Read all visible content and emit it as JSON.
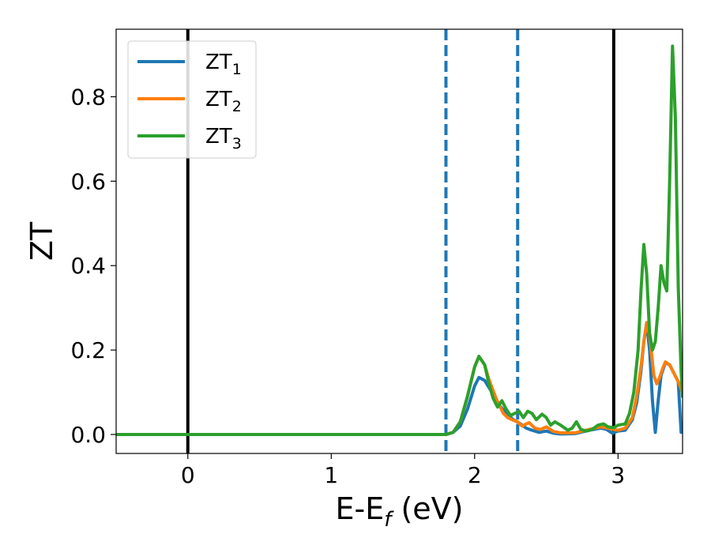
{
  "chart_data": {
    "type": "line",
    "xlabel": {
      "main": "E-E",
      "sub": "f",
      "suffix": " (eV)"
    },
    "ylabel": "ZT",
    "xlim": [
      -0.5,
      3.45
    ],
    "ylim": [
      -0.045,
      0.96
    ],
    "x_ticks": [
      0,
      1,
      2,
      3
    ],
    "x_tick_labels": [
      "0",
      "1",
      "2",
      "3"
    ],
    "y_ticks": [
      0.0,
      0.2,
      0.4,
      0.6,
      0.8
    ],
    "y_tick_labels": [
      "0.0",
      "0.2",
      "0.4",
      "0.6",
      "0.8"
    ],
    "grid": false,
    "legend": {
      "placement": "top-left"
    },
    "vlines": [
      {
        "x": 0.0,
        "style": "solid",
        "color": "#000000"
      },
      {
        "x": 1.8,
        "style": "dashed",
        "color": "#1f77b4"
      },
      {
        "x": 2.3,
        "style": "dashed",
        "color": "#1f77b4"
      },
      {
        "x": 2.97,
        "style": "solid",
        "color": "#000000"
      }
    ],
    "series": [
      {
        "name": {
          "main": "ZT",
          "sub": "1"
        },
        "color": "#1f77b4",
        "points": [
          [
            -0.5,
            0
          ],
          [
            1.8,
            0
          ],
          [
            1.85,
            0.005
          ],
          [
            1.9,
            0.02
          ],
          [
            1.95,
            0.06
          ],
          [
            2.0,
            0.115
          ],
          [
            2.03,
            0.135
          ],
          [
            2.07,
            0.128
          ],
          [
            2.12,
            0.1
          ],
          [
            2.17,
            0.07
          ],
          [
            2.22,
            0.05
          ],
          [
            2.27,
            0.035
          ],
          [
            2.32,
            0.025
          ],
          [
            2.36,
            0.015
          ],
          [
            2.4,
            0.01
          ],
          [
            2.45,
            0.005
          ],
          [
            2.5,
            0.008
          ],
          [
            2.55,
            0.003
          ],
          [
            2.6,
            0.001
          ],
          [
            2.7,
            0.002
          ],
          [
            2.8,
            0.01
          ],
          [
            2.88,
            0.015
          ],
          [
            2.92,
            0.012
          ],
          [
            2.96,
            0.003
          ],
          [
            3.0,
            0.008
          ],
          [
            3.05,
            0.01
          ],
          [
            3.1,
            0.035
          ],
          [
            3.13,
            0.075
          ],
          [
            3.16,
            0.15
          ],
          [
            3.18,
            0.22
          ],
          [
            3.2,
            0.265
          ],
          [
            3.22,
            0.2
          ],
          [
            3.24,
            0.08
          ],
          [
            3.26,
            0.005
          ],
          [
            3.28,
            0.08
          ],
          [
            3.3,
            0.14
          ],
          [
            3.33,
            0.17
          ],
          [
            3.36,
            0.165
          ],
          [
            3.39,
            0.145
          ],
          [
            3.42,
            0.125
          ],
          [
            3.44,
            0.005
          ],
          [
            3.45,
            0.01
          ]
        ]
      },
      {
        "name": {
          "main": "ZT",
          "sub": "2"
        },
        "color": "#ff7f0e",
        "points": [
          [
            -0.5,
            0
          ],
          [
            1.8,
            0
          ],
          [
            1.85,
            0.005
          ],
          [
            1.9,
            0.03
          ],
          [
            1.95,
            0.09
          ],
          [
            2.0,
            0.16
          ],
          [
            2.03,
            0.185
          ],
          [
            2.07,
            0.165
          ],
          [
            2.1,
            0.13
          ],
          [
            2.15,
            0.085
          ],
          [
            2.2,
            0.05
          ],
          [
            2.23,
            0.04
          ],
          [
            2.26,
            0.035
          ],
          [
            2.3,
            0.03
          ],
          [
            2.33,
            0.02
          ],
          [
            2.36,
            0.025
          ],
          [
            2.38,
            0.028
          ],
          [
            2.42,
            0.015
          ],
          [
            2.46,
            0.012
          ],
          [
            2.5,
            0.018
          ],
          [
            2.55,
            0.007
          ],
          [
            2.6,
            0.004
          ],
          [
            2.7,
            0.004
          ],
          [
            2.8,
            0.012
          ],
          [
            2.88,
            0.018
          ],
          [
            2.93,
            0.015
          ],
          [
            2.97,
            0.012
          ],
          [
            3.0,
            0.01
          ],
          [
            3.05,
            0.015
          ],
          [
            3.1,
            0.04
          ],
          [
            3.13,
            0.09
          ],
          [
            3.16,
            0.16
          ],
          [
            3.18,
            0.22
          ],
          [
            3.2,
            0.265
          ],
          [
            3.22,
            0.235
          ],
          [
            3.25,
            0.14
          ],
          [
            3.27,
            0.12
          ],
          [
            3.29,
            0.135
          ],
          [
            3.31,
            0.155
          ],
          [
            3.33,
            0.172
          ],
          [
            3.36,
            0.165
          ],
          [
            3.39,
            0.145
          ],
          [
            3.42,
            0.125
          ],
          [
            3.45,
            0.1
          ]
        ]
      },
      {
        "name": {
          "main": "ZT",
          "sub": "3"
        },
        "color": "#2ca02c",
        "points": [
          [
            -0.5,
            0
          ],
          [
            1.8,
            0
          ],
          [
            1.85,
            0.005
          ],
          [
            1.9,
            0.03
          ],
          [
            1.95,
            0.09
          ],
          [
            2.0,
            0.16
          ],
          [
            2.03,
            0.185
          ],
          [
            2.07,
            0.165
          ],
          [
            2.1,
            0.12
          ],
          [
            2.13,
            0.085
          ],
          [
            2.16,
            0.065
          ],
          [
            2.19,
            0.08
          ],
          [
            2.22,
            0.06
          ],
          [
            2.25,
            0.045
          ],
          [
            2.28,
            0.05
          ],
          [
            2.31,
            0.055
          ],
          [
            2.34,
            0.04
          ],
          [
            2.37,
            0.055
          ],
          [
            2.4,
            0.05
          ],
          [
            2.43,
            0.035
          ],
          [
            2.47,
            0.048
          ],
          [
            2.5,
            0.04
          ],
          [
            2.53,
            0.022
          ],
          [
            2.56,
            0.03
          ],
          [
            2.6,
            0.022
          ],
          [
            2.65,
            0.01
          ],
          [
            2.68,
            0.015
          ],
          [
            2.71,
            0.03
          ],
          [
            2.74,
            0.012
          ],
          [
            2.78,
            0.008
          ],
          [
            2.82,
            0.012
          ],
          [
            2.86,
            0.022
          ],
          [
            2.9,
            0.025
          ],
          [
            2.93,
            0.018
          ],
          [
            2.97,
            0.016
          ],
          [
            3.0,
            0.022
          ],
          [
            3.05,
            0.025
          ],
          [
            3.08,
            0.05
          ],
          [
            3.11,
            0.1
          ],
          [
            3.14,
            0.2
          ],
          [
            3.16,
            0.34
          ],
          [
            3.18,
            0.45
          ],
          [
            3.2,
            0.38
          ],
          [
            3.22,
            0.24
          ],
          [
            3.24,
            0.2
          ],
          [
            3.26,
            0.22
          ],
          [
            3.28,
            0.3
          ],
          [
            3.3,
            0.4
          ],
          [
            3.32,
            0.36
          ],
          [
            3.34,
            0.34
          ],
          [
            3.36,
            0.6
          ],
          [
            3.38,
            0.92
          ],
          [
            3.4,
            0.75
          ],
          [
            3.42,
            0.35
          ],
          [
            3.44,
            0.15
          ],
          [
            3.45,
            0.09
          ]
        ]
      }
    ]
  }
}
